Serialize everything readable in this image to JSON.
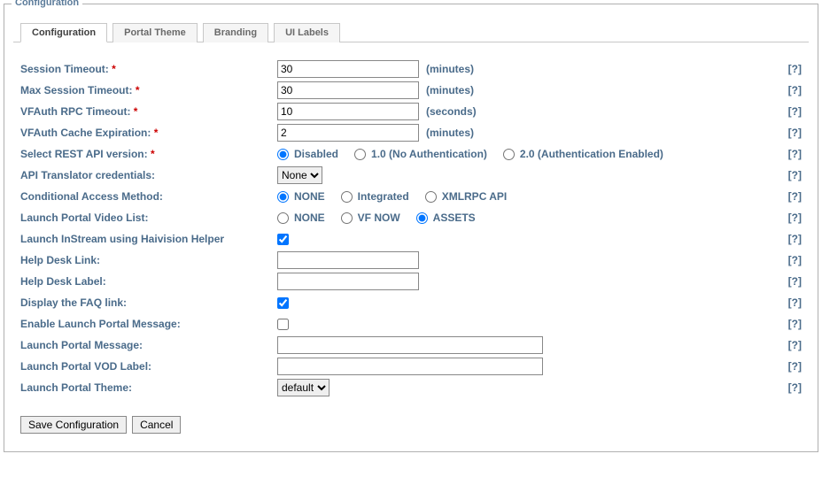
{
  "legend": "Configuration",
  "tabs": {
    "configuration": "Configuration",
    "portal_theme": "Portal Theme",
    "branding": "Branding",
    "ui_labels": "UI Labels"
  },
  "help_text": "[?]",
  "rows": {
    "session_timeout": {
      "label": "Session Timeout:",
      "value": "30",
      "unit": "(minutes)"
    },
    "max_session_timeout": {
      "label": "Max Session Timeout:",
      "value": "30",
      "unit": "(minutes)"
    },
    "vfauth_rpc_timeout": {
      "label": "VFAuth RPC Timeout:",
      "value": "10",
      "unit": "(seconds)"
    },
    "vfauth_cache_exp": {
      "label": "VFAuth Cache Expiration:",
      "value": "2",
      "unit": "(minutes)"
    },
    "rest_api": {
      "label": "Select REST API version:",
      "opt_disabled": "Disabled",
      "opt_10": "1.0 (No Authentication)",
      "opt_20": "2.0 (Authentication Enabled)"
    },
    "api_translator": {
      "label": "API Translator credentials:",
      "selected": "None"
    },
    "cond_access": {
      "label": "Conditional Access Method:",
      "opt_none": "NONE",
      "opt_integrated": "Integrated",
      "opt_xmlrpc": "XMLRPC API"
    },
    "launch_video_list": {
      "label": "Launch Portal Video List:",
      "opt_none": "NONE",
      "opt_vfnow": "VF NOW",
      "opt_assets": "ASSETS"
    },
    "instream_helper": {
      "label": "Launch InStream using Haivision Helper"
    },
    "help_desk_link": {
      "label": "Help Desk Link:",
      "value": ""
    },
    "help_desk_label": {
      "label": "Help Desk Label:",
      "value": ""
    },
    "display_faq": {
      "label": "Display the FAQ link:"
    },
    "enable_lp_msg": {
      "label": "Enable Launch Portal Message:"
    },
    "lp_message": {
      "label": "Launch Portal Message:",
      "value": ""
    },
    "lp_vod_label": {
      "label": "Launch Portal VOD Label:",
      "value": ""
    },
    "lp_theme": {
      "label": "Launch Portal Theme:",
      "selected": "default"
    }
  },
  "buttons": {
    "save": "Save Configuration",
    "cancel": "Cancel"
  },
  "asterisk": "*"
}
